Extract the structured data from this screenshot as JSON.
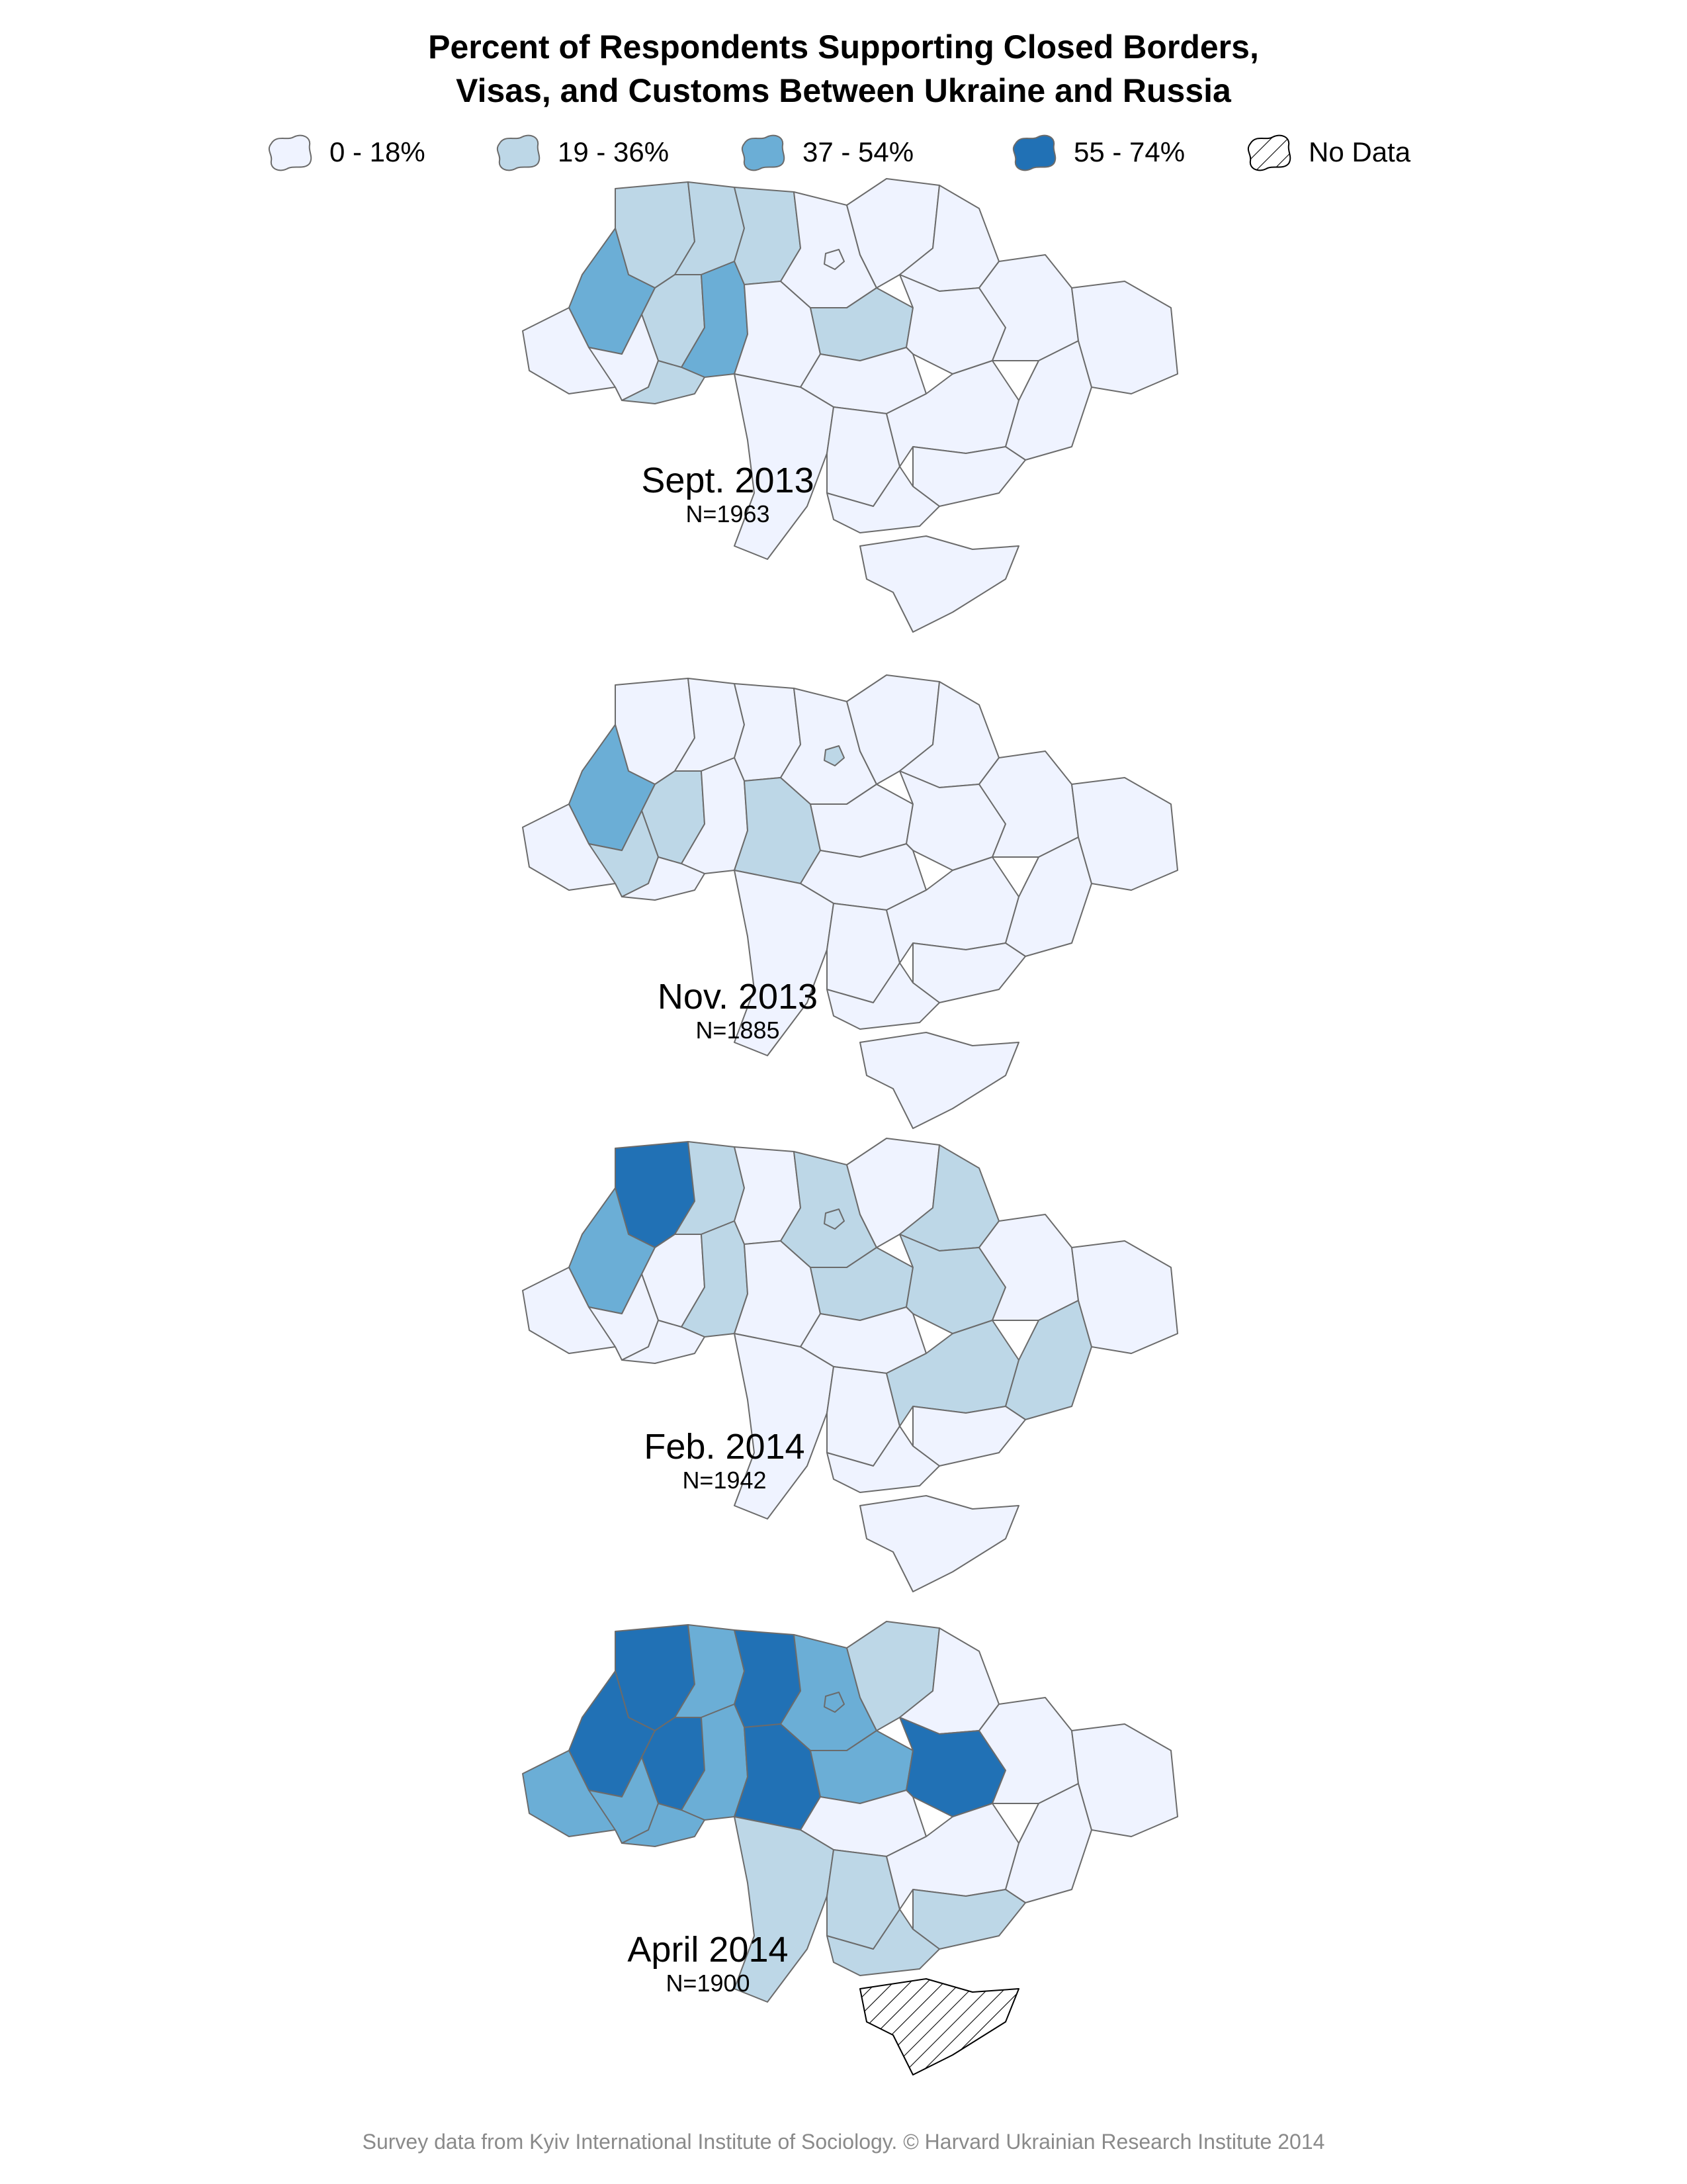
{
  "title": {
    "line1": "Percent of Respondents Supporting Closed Borders,",
    "line2": "Visas, and Customs Between Ukraine and Russia"
  },
  "legend": [
    {
      "label": "0 - 18%",
      "color": "#eff3ff"
    },
    {
      "label": "19 - 36%",
      "color": "#bdd7e7"
    },
    {
      "label": "37 - 54%",
      "color": "#6baed6"
    },
    {
      "label": "55 - 74%",
      "color": "#2171b5"
    },
    {
      "label": "No Data",
      "color": "#ffffff",
      "pattern": "hatched"
    }
  ],
  "colors": {
    "border": "#6b6b6b",
    "class_0_18": "#eff3ff",
    "class_19_36": "#bdd7e7",
    "class_37_54": "#6baed6",
    "class_55_74": "#2171b5"
  },
  "panels": [
    {
      "period": "Sept. 2013",
      "sample": "N=1963",
      "regions": {
        "volyn": 1,
        "rivne": 1,
        "zhytomyr": 1,
        "lviv": 2,
        "ternopil": 1,
        "khmelnytskyi": 2,
        "zakarpattia": 0,
        "ivano_frankivsk": 0,
        "chernivtsi": 1,
        "vinnytsia": 0,
        "kyiv_oblast": 0,
        "kyiv_city": 0,
        "chernihiv": 0,
        "sumy": 0,
        "cherkasy": 1,
        "poltava": 0,
        "kharkiv": 0,
        "kirovohrad": 0,
        "odesa": 0,
        "mykolaiv": 0,
        "dnipropetrovsk": 0,
        "donetsk": 0,
        "luhansk": 0,
        "zaporizhzhia": 0,
        "kherson": 0,
        "crimea": 0
      }
    },
    {
      "period": "Nov. 2013",
      "sample": "N=1885",
      "regions": {
        "volyn": 0,
        "rivne": 0,
        "zhytomyr": 0,
        "lviv": 2,
        "ternopil": 1,
        "khmelnytskyi": 0,
        "zakarpattia": 0,
        "ivano_frankivsk": 1,
        "chernivtsi": 0,
        "vinnytsia": 1,
        "kyiv_oblast": 0,
        "kyiv_city": 1,
        "chernihiv": 0,
        "sumy": 0,
        "cherkasy": 0,
        "poltava": 0,
        "kharkiv": 0,
        "kirovohrad": 0,
        "odesa": 0,
        "mykolaiv": 0,
        "dnipropetrovsk": 0,
        "donetsk": 0,
        "luhansk": 0,
        "zaporizhzhia": 0,
        "kherson": 0,
        "crimea": 0
      }
    },
    {
      "period": "Feb. 2014",
      "sample": "N=1942",
      "regions": {
        "volyn": 3,
        "rivne": 1,
        "zhytomyr": 0,
        "lviv": 2,
        "ternopil": 0,
        "khmelnytskyi": 1,
        "zakarpattia": 0,
        "ivano_frankivsk": 0,
        "chernivtsi": 0,
        "vinnytsia": 0,
        "kyiv_oblast": 1,
        "kyiv_city": 1,
        "chernihiv": 0,
        "sumy": 1,
        "cherkasy": 1,
        "poltava": 1,
        "kharkiv": 0,
        "kirovohrad": 0,
        "odesa": 0,
        "mykolaiv": 0,
        "dnipropetrovsk": 1,
        "donetsk": 1,
        "luhansk": 0,
        "zaporizhzhia": 0,
        "kherson": 0,
        "crimea": 0
      }
    },
    {
      "period": "April 2014",
      "sample": "N=1900",
      "regions": {
        "volyn": 3,
        "rivne": 2,
        "zhytomyr": 3,
        "lviv": 3,
        "ternopil": 3,
        "khmelnytskyi": 2,
        "zakarpattia": 2,
        "ivano_frankivsk": 2,
        "chernivtsi": 2,
        "vinnytsia": 3,
        "kyiv_oblast": 2,
        "kyiv_city": 2,
        "chernihiv": 1,
        "sumy": 0,
        "cherkasy": 2,
        "poltava": 3,
        "kharkiv": 0,
        "kirovohrad": 0,
        "odesa": 1,
        "mykolaiv": 1,
        "dnipropetrovsk": 0,
        "donetsk": 0,
        "luhansk": 0,
        "zaporizhzhia": 1,
        "kherson": 1,
        "crimea": "no_data"
      }
    }
  ],
  "source": "Survey data from Kyiv International Institute of Sociology. © Harvard Ukrainian Research Institute 2014"
}
